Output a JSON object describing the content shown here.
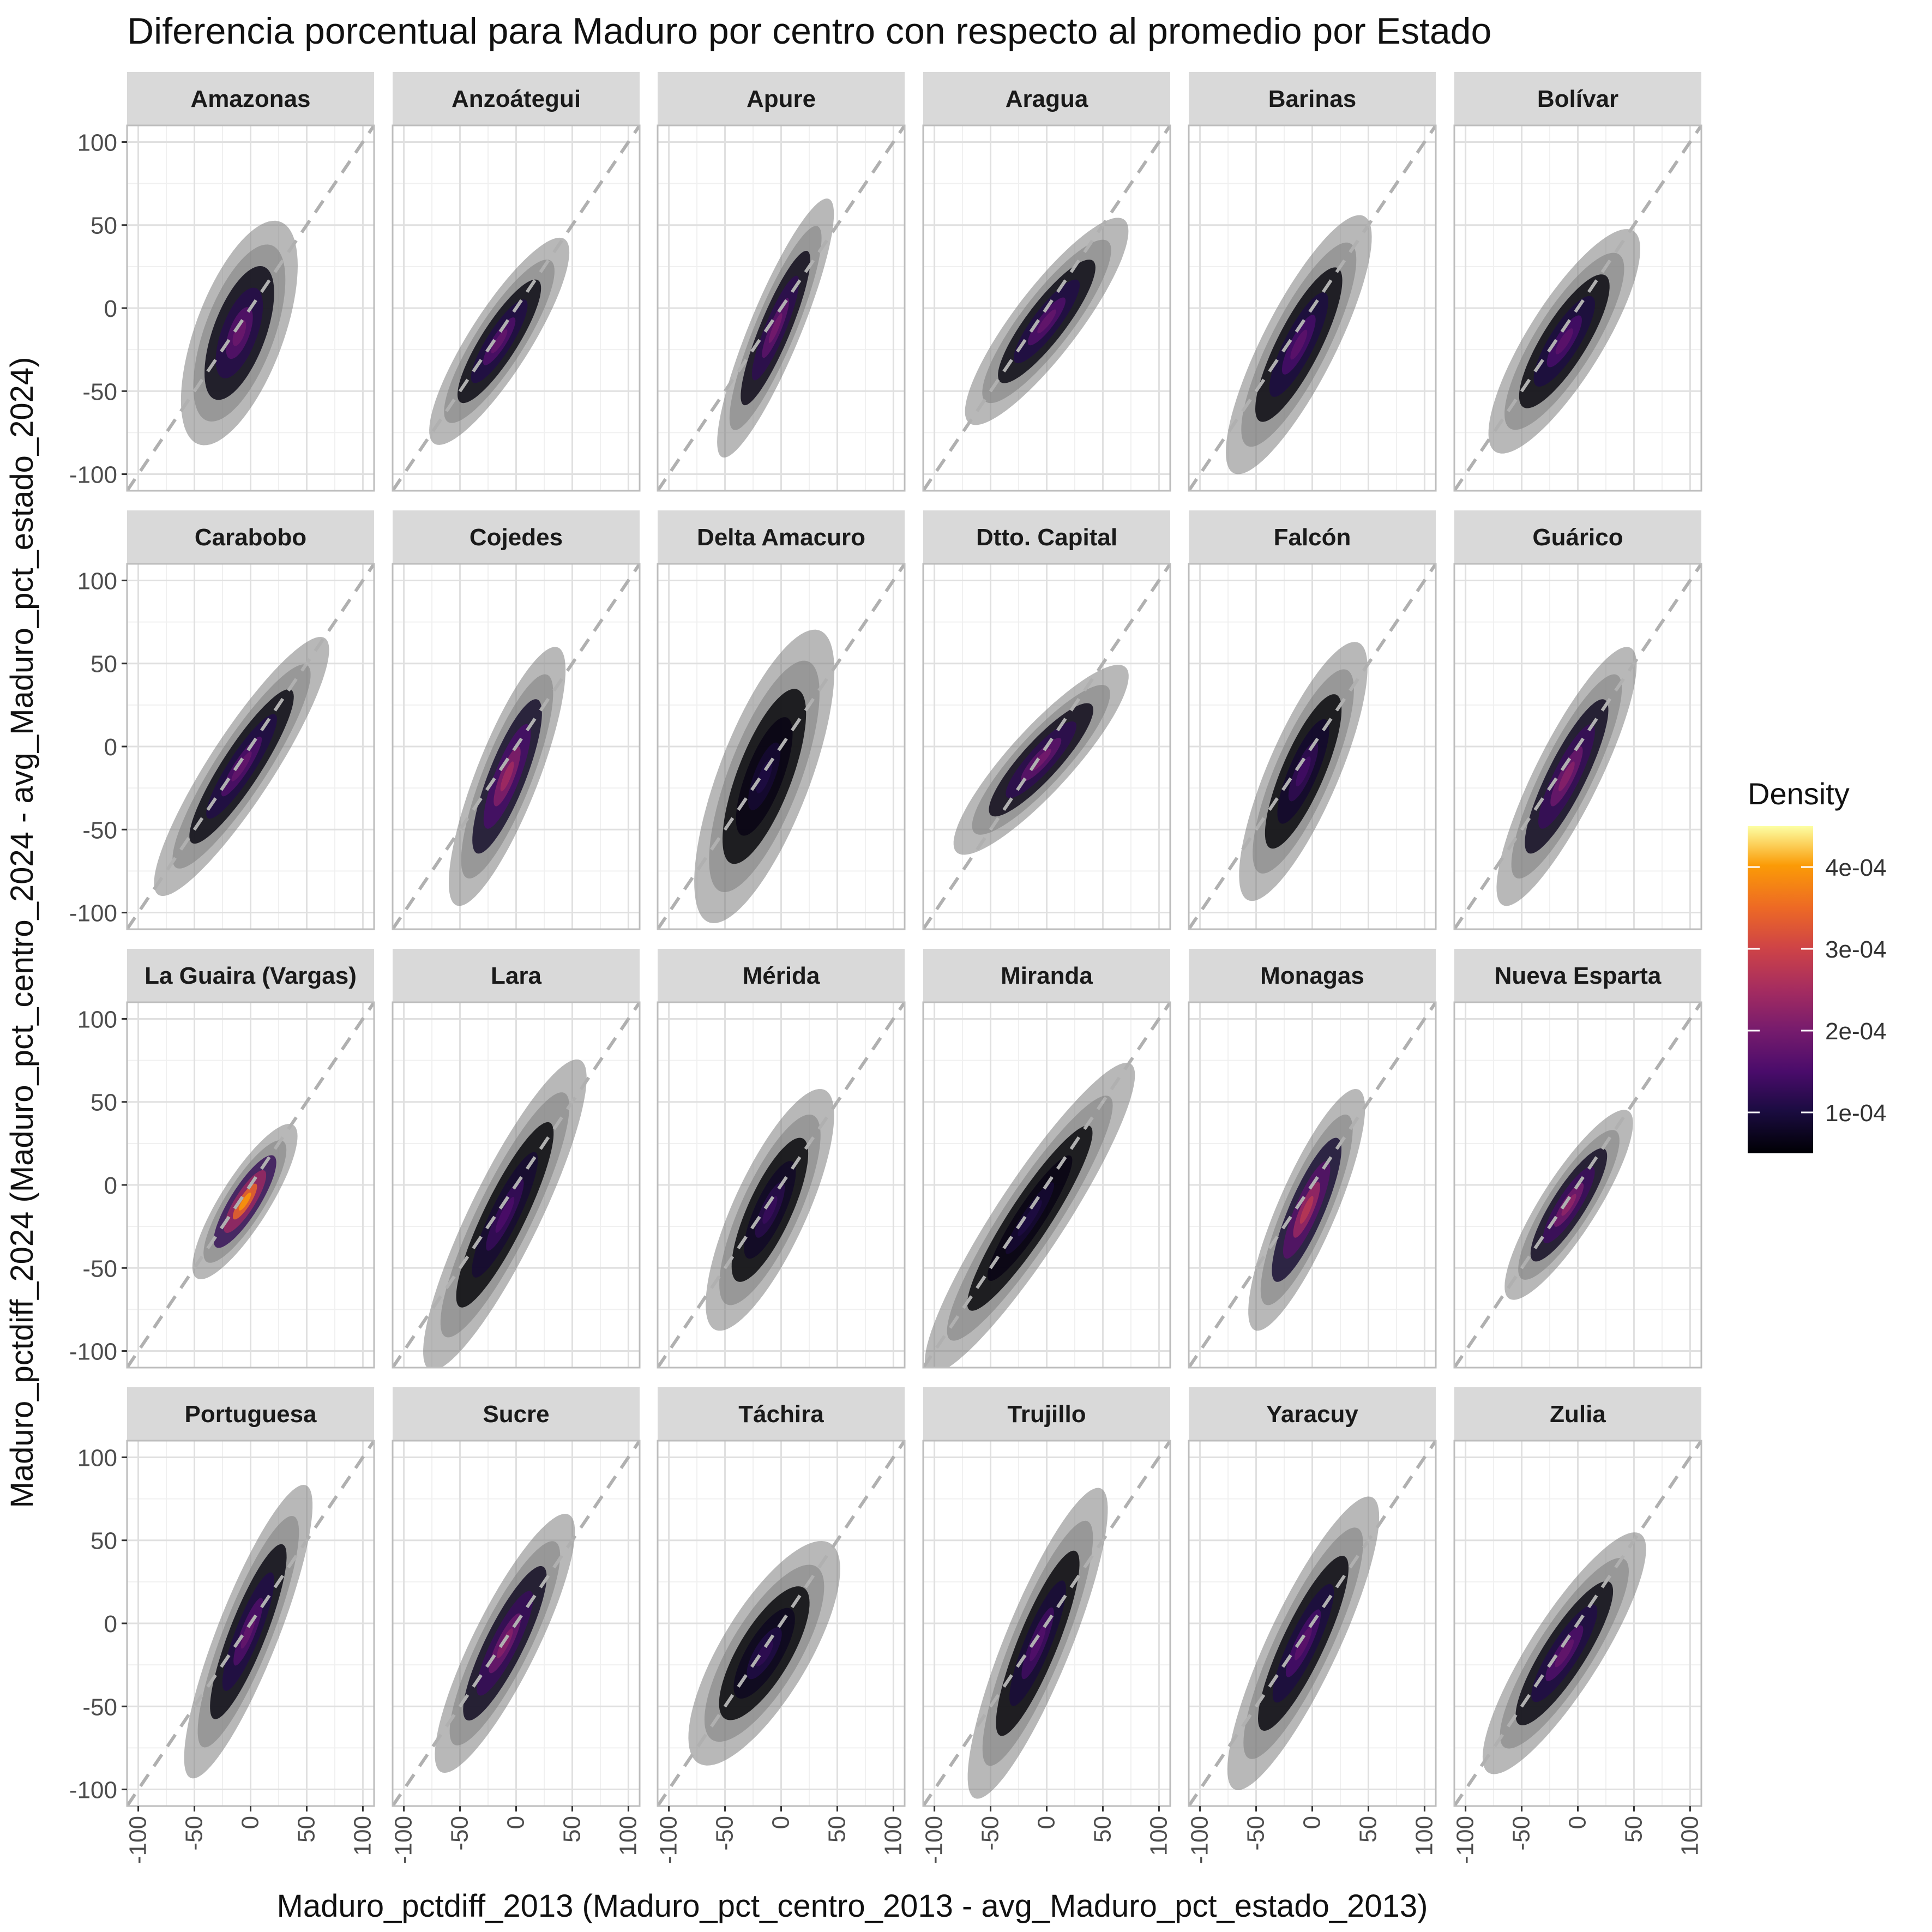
{
  "chart_data": {
    "type": "facet-density-contour",
    "title": "Diferencia porcentual para Maduro por centro con respecto al promedio por Estado",
    "xlabel": "Maduro_pctdiff_2013 (Maduro_pct_centro_2013 - avg_Maduro_pct_estado_2013)",
    "ylabel": "Maduro_pctdiff_2024 (Maduro_pct_centro_2024 - avg_Maduro_pct_estado_2024)",
    "xlim": [
      -110,
      110
    ],
    "ylim": [
      -110,
      110
    ],
    "x_ticks": [
      -100,
      -50,
      0,
      50,
      100
    ],
    "x_tick_labels": [
      "-100",
      "-50",
      "0",
      "50",
      "100"
    ],
    "y_ticks": [
      -100,
      -50,
      0,
      50,
      100
    ],
    "y_tick_labels": [
      "-100",
      "-50",
      "0",
      "50",
      "100"
    ],
    "grid": true,
    "reference_line": {
      "slope": 1,
      "intercept": 0,
      "style": "dashed",
      "color": "#b0b0b0"
    },
    "legend": {
      "title": "Density",
      "position": "right",
      "colormap": "inferno",
      "range": [
        5e-05,
        0.00045
      ],
      "ticks": [
        0.0001,
        0.0002,
        0.0003,
        0.0004
      ],
      "tick_labels": [
        "1e-04",
        "2e-04",
        "3e-04",
        "4e-04"
      ]
    },
    "panels": [
      {
        "name": "Amazonas",
        "center": [
          -10,
          -15
        ],
        "sx": 20,
        "sy": 26,
        "rho": 0.6,
        "peak": 0.0002
      },
      {
        "name": "Anzoátegui",
        "center": [
          -15,
          -20
        ],
        "sx": 24,
        "sy": 24,
        "rho": 0.86,
        "peak": 0.00019
      },
      {
        "name": "Apure",
        "center": [
          -5,
          -12
        ],
        "sx": 20,
        "sy": 30,
        "rho": 0.88,
        "peak": 0.00021
      },
      {
        "name": "Aragua",
        "center": [
          0,
          -8
        ],
        "sx": 28,
        "sy": 24,
        "rho": 0.87,
        "peak": 0.00019
      },
      {
        "name": "Barinas",
        "center": [
          -12,
          -22
        ],
        "sx": 25,
        "sy": 30,
        "rho": 0.83,
        "peak": 0.00018
      },
      {
        "name": "Bolívar",
        "center": [
          -12,
          -20
        ],
        "sx": 26,
        "sy": 26,
        "rho": 0.82,
        "peak": 0.00018
      },
      {
        "name": "Carabobo",
        "center": [
          -8,
          -12
        ],
        "sx": 30,
        "sy": 30,
        "rho": 0.9,
        "peak": 0.00019
      },
      {
        "name": "Cojedes",
        "center": [
          -8,
          -18
        ],
        "sx": 20,
        "sy": 30,
        "rho": 0.82,
        "peak": 0.00026
      },
      {
        "name": "Delta Amacuro",
        "center": [
          -15,
          -18
        ],
        "sx": 24,
        "sy": 34,
        "rho": 0.72,
        "peak": 0.00011
      },
      {
        "name": "Dtto. Capital",
        "center": [
          -5,
          -8
        ],
        "sx": 30,
        "sy": 22,
        "rho": 0.88,
        "peak": 0.00021
      },
      {
        "name": "Falcón",
        "center": [
          -8,
          -15
        ],
        "sx": 22,
        "sy": 30,
        "rho": 0.8,
        "peak": 0.00015
      },
      {
        "name": "Guárico",
        "center": [
          -10,
          -18
        ],
        "sx": 24,
        "sy": 30,
        "rho": 0.86,
        "peak": 0.00023
      },
      {
        "name": "La Guaira (Vargas)",
        "center": [
          -5,
          -10
        ],
        "sx": 18,
        "sy": 18,
        "rho": 0.84,
        "peak": 0.00042
      },
      {
        "name": "Lara",
        "center": [
          -10,
          -18
        ],
        "sx": 28,
        "sy": 36,
        "rho": 0.88,
        "peak": 0.00016
      },
      {
        "name": "Mérida",
        "center": [
          -10,
          -15
        ],
        "sx": 22,
        "sy": 28,
        "rho": 0.78,
        "peak": 0.00014
      },
      {
        "name": "Miranda",
        "center": [
          -15,
          -20
        ],
        "sx": 36,
        "sy": 36,
        "rho": 0.92,
        "peak": 0.00011
      },
      {
        "name": "Monagas",
        "center": [
          -5,
          -15
        ],
        "sx": 20,
        "sy": 28,
        "rho": 0.84,
        "peak": 0.00029
      },
      {
        "name": "Nueva Esparta",
        "center": [
          -8,
          -12
        ],
        "sx": 22,
        "sy": 22,
        "rho": 0.86,
        "peak": 0.00024
      },
      {
        "name": "Portuguesa",
        "center": [
          -2,
          -5
        ],
        "sx": 22,
        "sy": 34,
        "rho": 0.86,
        "peak": 0.00019
      },
      {
        "name": "Sucre",
        "center": [
          -10,
          -12
        ],
        "sx": 24,
        "sy": 30,
        "rho": 0.86,
        "peak": 0.00023
      },
      {
        "name": "Táchira",
        "center": [
          -15,
          -18
        ],
        "sx": 26,
        "sy": 26,
        "rho": 0.75,
        "peak": 0.00013
      },
      {
        "name": "Trujillo",
        "center": [
          -8,
          -12
        ],
        "sx": 24,
        "sy": 36,
        "rho": 0.86,
        "peak": 0.00017
      },
      {
        "name": "Yaracuy",
        "center": [
          -8,
          -12
        ],
        "sx": 26,
        "sy": 34,
        "rho": 0.86,
        "peak": 0.00018
      },
      {
        "name": "Zulia",
        "center": [
          -12,
          -18
        ],
        "sx": 28,
        "sy": 28,
        "rho": 0.86,
        "peak": 0.00019
      }
    ]
  }
}
